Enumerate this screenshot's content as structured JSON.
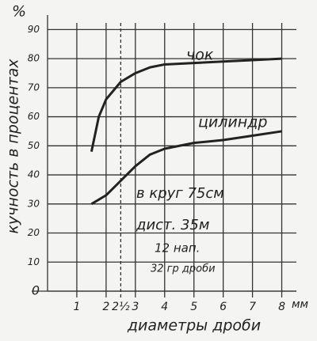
{
  "chart_data": {
    "type": "line",
    "y_label": "кучность в процентах",
    "y_unit": "%",
    "x_label": "диаметры дроби",
    "x_unit": "мм",
    "x": [
      1.5,
      1.75,
      2,
      2.5,
      3,
      3.5,
      4,
      5,
      6,
      7,
      8
    ],
    "series": [
      {
        "name": "чок",
        "color": "#222222",
        "values": [
          48,
          60,
          66,
          72,
          75,
          77,
          78,
          78.5,
          79,
          79.5,
          80
        ]
      },
      {
        "name": "цилиндр",
        "color": "#222222",
        "values": [
          30,
          31.5,
          33,
          38,
          43,
          47,
          49,
          51,
          52,
          53.5,
          55
        ]
      }
    ],
    "xlim": [
      0,
      8.5
    ],
    "xticks": [
      1,
      2,
      {
        "value": 2.5,
        "label": "2½"
      },
      3,
      4,
      5,
      6,
      7,
      8
    ],
    "ylim": [
      0,
      95
    ],
    "yticks": [
      0,
      10,
      20,
      30,
      40,
      50,
      60,
      70,
      80,
      90
    ],
    "grid": true,
    "annotations": [
      "в круг 75см",
      "дист. 35м",
      "12 нап.",
      "32 гр дроби"
    ]
  }
}
